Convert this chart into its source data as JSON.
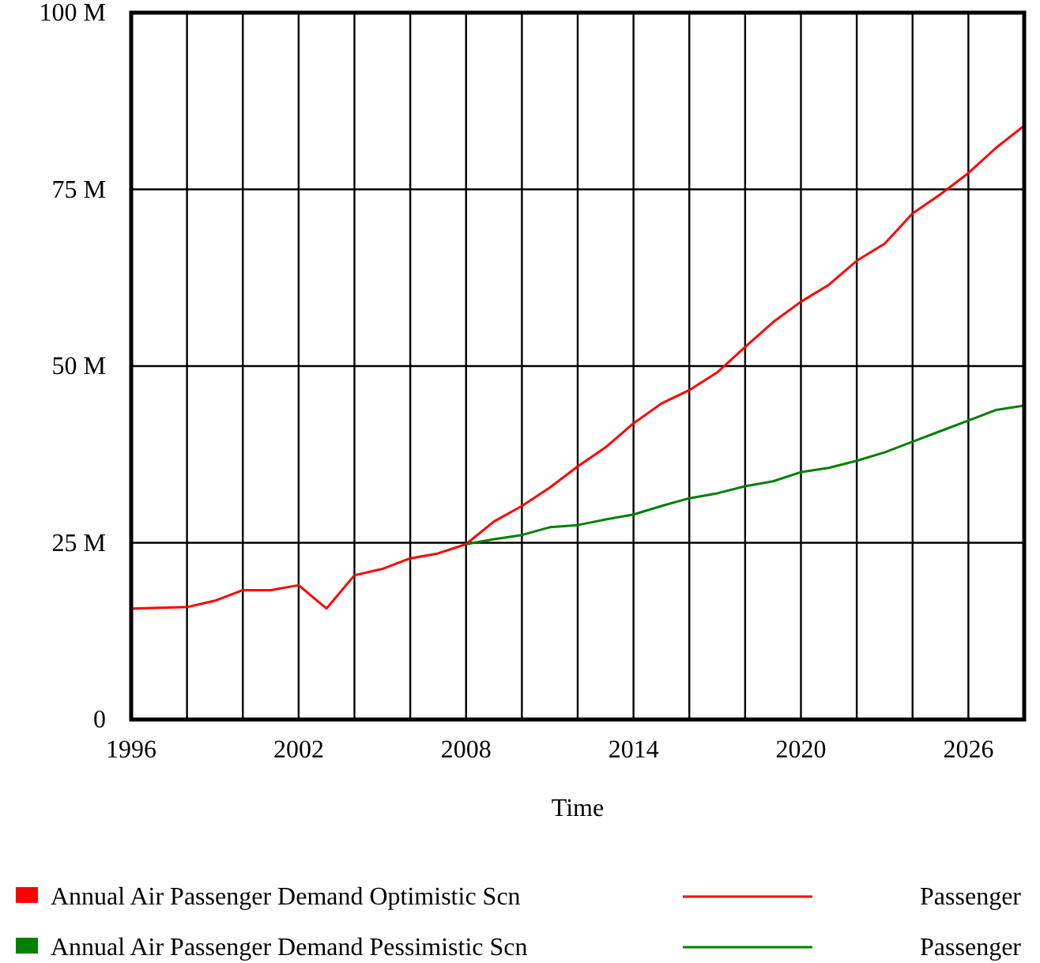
{
  "chart_data": {
    "type": "line",
    "xlabel": "Time",
    "x": [
      1996,
      1997,
      1998,
      1999,
      2000,
      2001,
      2002,
      2003,
      2004,
      2005,
      2006,
      2007,
      2008,
      2009,
      2010,
      2011,
      2012,
      2013,
      2014,
      2015,
      2016,
      2017,
      2018,
      2019,
      2020,
      2021,
      2022,
      2023,
      2024,
      2025,
      2026,
      2027,
      2028
    ],
    "series": [
      {
        "name": "Annual Air Passenger Demand Optimistic Scn",
        "color": "#ff0000",
        "values": [
          15.7,
          15.8,
          15.9,
          16.8,
          18.3,
          18.3,
          19.0,
          15.7,
          20.4,
          21.3,
          22.8,
          23.5,
          24.8,
          28.0,
          30.2,
          32.8,
          35.8,
          38.5,
          41.9,
          44.7,
          46.6,
          49.1,
          52.7,
          56.2,
          59.1,
          61.5,
          64.9,
          67.3,
          71.6,
          74.3,
          77.3,
          80.9,
          84.0
        ]
      },
      {
        "name": "Annual Air Passenger Demand Pessimistic Scn",
        "color": "#008000",
        "values": [
          null,
          null,
          null,
          null,
          null,
          null,
          null,
          null,
          null,
          null,
          null,
          null,
          24.8,
          25.5,
          26.1,
          27.2,
          27.5,
          28.3,
          29.0,
          30.2,
          31.3,
          32.0,
          33.0,
          33.7,
          35.0,
          35.6,
          36.6,
          37.8,
          39.3,
          40.8,
          42.3,
          43.8,
          44.4
        ]
      }
    ],
    "xlim": [
      1996,
      2028
    ],
    "xticks": [
      1996,
      {
        "value": 1998,
        "label": null
      },
      {
        "value": 2000,
        "label": null
      },
      2002,
      {
        "value": 2004,
        "label": null
      },
      {
        "value": 2006,
        "label": null
      },
      2008,
      {
        "value": 2010,
        "label": null
      },
      {
        "value": 2012,
        "label": null
      },
      2014,
      {
        "value": 2016,
        "label": null
      },
      {
        "value": 2018,
        "label": null
      },
      2020,
      {
        "value": 2022,
        "label": null
      },
      {
        "value": 2024,
        "label": null
      },
      2026,
      {
        "value": 2028,
        "label": null
      }
    ],
    "ylim": [
      0,
      100
    ],
    "yticks": [
      {
        "value": 0,
        "label": "0"
      },
      {
        "value": 25,
        "label": "25 M"
      },
      {
        "value": 50,
        "label": "50 M"
      },
      {
        "value": 75,
        "label": "75 M"
      },
      {
        "value": 100,
        "label": "100 M"
      }
    ],
    "grid": true,
    "legend": "bottom",
    "line_style": "solid",
    "marker": "none",
    "annotations": [
      "Passenger",
      "Passenger"
    ]
  }
}
